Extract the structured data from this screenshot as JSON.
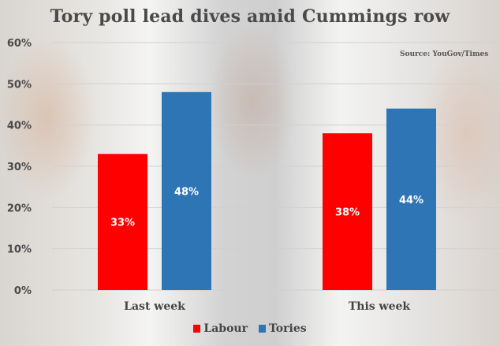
{
  "colors": {
    "Labour": "#ff0000",
    "Tories": "#2e75b6",
    "grid": "#d0d0d0",
    "text": "#4a4a4a"
  },
  "chart_data": {
    "type": "bar",
    "title": "Tory poll lead dives amid Cummings row",
    "source": "Source: YouGov/Times",
    "categories": [
      "Last week",
      "This week"
    ],
    "series": [
      {
        "name": "Labour",
        "values": [
          33,
          38
        ],
        "labels": [
          "33%",
          "38%"
        ]
      },
      {
        "name": "Tories",
        "values": [
          48,
          44
        ],
        "labels": [
          "48%",
          "44%"
        ]
      }
    ],
    "xlabel": "",
    "ylabel": "",
    "ylim": [
      0,
      60
    ],
    "yticks": [
      0,
      10,
      20,
      30,
      40,
      50,
      60
    ],
    "ytick_labels": [
      "0%",
      "10%",
      "20%",
      "30%",
      "40%",
      "50%",
      "60%"
    ],
    "grid": true,
    "legend_position": "bottom-center"
  }
}
